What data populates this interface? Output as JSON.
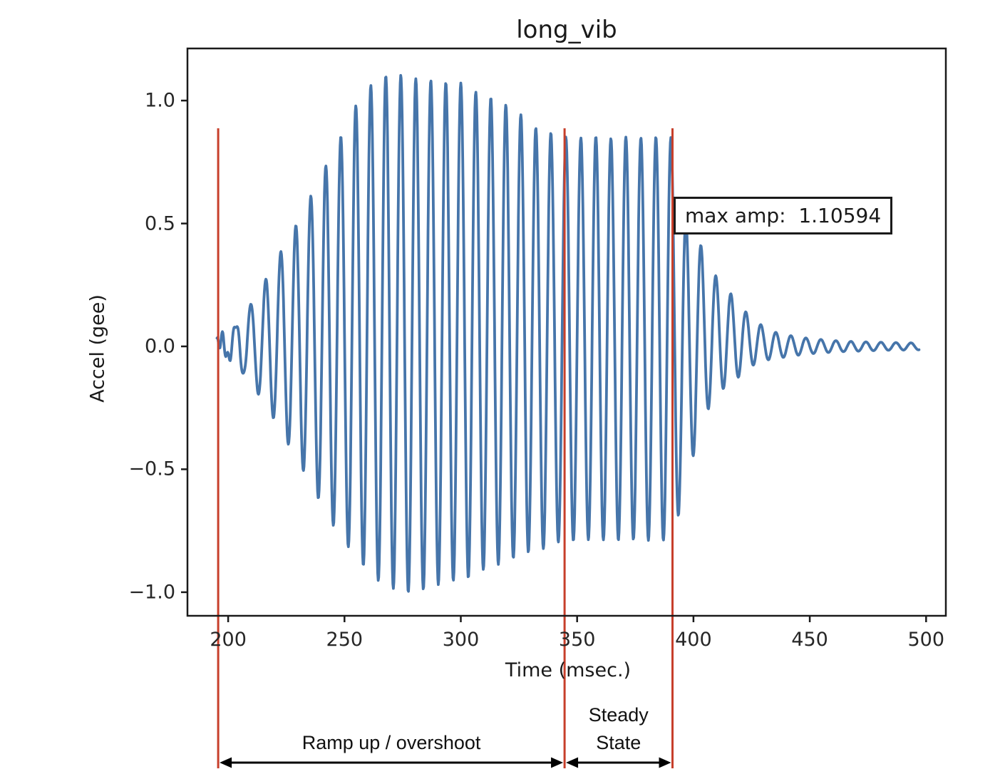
{
  "page": {
    "background": "#ffffff"
  },
  "chart_data": {
    "type": "line",
    "title": "long_vib",
    "xlabel": "Time (msec.)",
    "ylabel": "Accel (gee)",
    "grid": false,
    "legend": "none",
    "xlim": [
      182.5,
      508.5
    ],
    "ylim": [
      -1.096,
      1.212
    ],
    "x_ticks": [
      200,
      250,
      300,
      350,
      400,
      450,
      500
    ],
    "y_ticks": [
      -1.0,
      -0.5,
      0.0,
      0.5,
      1.0
    ],
    "y_tick_labels": [
      "−1.0",
      "−0.5",
      "0.0",
      "0.5",
      "1.0"
    ],
    "line_color": "#3c6ea5",
    "line_width": 3.8,
    "frame_color": "#1a1a1a",
    "max_amp": 1.10594,
    "annotation": {
      "text": "max amp:  1.10594"
    },
    "event_lines": {
      "color": "#c73f2b",
      "width": 3,
      "t_values": [
        195.7,
        344.6,
        391.0
      ]
    },
    "regions": [
      {
        "label_lines": [
          "Ramp up / overshoot"
        ],
        "from_t": 195.7,
        "to_t": 344.6
      },
      {
        "label_lines": [
          "Steady",
          "State"
        ],
        "from_t": 344.6,
        "to_t": 391.0
      }
    ],
    "signal": {
      "description": "damped-driven vibration acceleration trace; envelopes are [time_ms, amplitude_gee] keypoints, waveform = sine of given period bounded by +pos/-neg envelopes",
      "t_start": 195.2,
      "t_end": 497.0,
      "period_ms": 6.45,
      "sample_step_ms": 0.21,
      "early_ripple": {
        "amp": 0.035,
        "period_ms": 2.3,
        "fade_ms": 15
      },
      "envelope_pos": [
        [
          195.2,
          0.01
        ],
        [
          197,
          0.035
        ],
        [
          200,
          0.06
        ],
        [
          204,
          0.1
        ],
        [
          208,
          0.15
        ],
        [
          212,
          0.2
        ],
        [
          216,
          0.27
        ],
        [
          220,
          0.34
        ],
        [
          224,
          0.41
        ],
        [
          228,
          0.47
        ],
        [
          232,
          0.55
        ],
        [
          236,
          0.62
        ],
        [
          240,
          0.7
        ],
        [
          244,
          0.77
        ],
        [
          247,
          0.83
        ],
        [
          250,
          0.88
        ],
        [
          254,
          0.97
        ],
        [
          257,
          1.0
        ],
        [
          260,
          1.055
        ],
        [
          263,
          1.07
        ],
        [
          266,
          1.095
        ],
        [
          270,
          1.106
        ],
        [
          273,
          1.106
        ],
        [
          276,
          1.1
        ],
        [
          279,
          1.095
        ],
        [
          283,
          1.08
        ],
        [
          288,
          1.082
        ],
        [
          293,
          1.072
        ],
        [
          299,
          1.078
        ],
        [
          305,
          1.04
        ],
        [
          312,
          1.015
        ],
        [
          318,
          0.99
        ],
        [
          325,
          0.95
        ],
        [
          331,
          0.892
        ],
        [
          338,
          0.87
        ],
        [
          345,
          0.852
        ],
        [
          352,
          0.848
        ],
        [
          358,
          0.853
        ],
        [
          364,
          0.845
        ],
        [
          370,
          0.852
        ],
        [
          376,
          0.847
        ],
        [
          382,
          0.853
        ],
        [
          387,
          0.848
        ],
        [
          391,
          0.85
        ],
        [
          393,
          0.72
        ],
        [
          395,
          0.55
        ],
        [
          398,
          0.49
        ],
        [
          401,
          0.44
        ],
        [
          404,
          0.4
        ],
        [
          407,
          0.34
        ],
        [
          410,
          0.28
        ],
        [
          413,
          0.245
        ],
        [
          416,
          0.215
        ],
        [
          419,
          0.18
        ],
        [
          422,
          0.145
        ],
        [
          425,
          0.12
        ],
        [
          428,
          0.095
        ],
        [
          431,
          0.075
        ],
        [
          434,
          0.062
        ],
        [
          437,
          0.052
        ],
        [
          441,
          0.045
        ],
        [
          445,
          0.039
        ],
        [
          450,
          0.032
        ],
        [
          456,
          0.027
        ],
        [
          463,
          0.022
        ],
        [
          471,
          0.019
        ],
        [
          480,
          0.017
        ],
        [
          489,
          0.015
        ],
        [
          497,
          0.014
        ]
      ],
      "envelope_neg": [
        [
          195.2,
          0.01
        ],
        [
          197,
          0.03
        ],
        [
          200,
          0.05
        ],
        [
          204,
          0.09
        ],
        [
          208,
          0.13
        ],
        [
          212,
          0.18
        ],
        [
          216,
          0.24
        ],
        [
          220,
          0.3
        ],
        [
          224,
          0.37
        ],
        [
          228,
          0.43
        ],
        [
          232,
          0.5
        ],
        [
          236,
          0.57
        ],
        [
          240,
          0.64
        ],
        [
          244,
          0.71
        ],
        [
          248,
          0.77
        ],
        [
          252,
          0.82
        ],
        [
          256,
          0.87
        ],
        [
          260,
          0.91
        ],
        [
          264,
          0.95
        ],
        [
          268,
          0.97
        ],
        [
          272,
          0.99
        ],
        [
          276,
          1.0
        ],
        [
          280,
          1.0
        ],
        [
          285,
          0.985
        ],
        [
          290,
          0.97
        ],
        [
          297,
          0.952
        ],
        [
          304,
          0.94
        ],
        [
          311,
          0.9
        ],
        [
          317,
          0.885
        ],
        [
          324,
          0.855
        ],
        [
          331,
          0.83
        ],
        [
          337,
          0.82
        ],
        [
          343,
          0.792
        ],
        [
          350,
          0.79
        ],
        [
          358,
          0.785
        ],
        [
          366,
          0.79
        ],
        [
          374,
          0.785
        ],
        [
          382,
          0.79
        ],
        [
          391,
          0.788
        ],
        [
          393,
          0.7
        ],
        [
          396,
          0.63
        ],
        [
          399,
          0.48
        ],
        [
          402,
          0.37
        ],
        [
          406,
          0.26
        ],
        [
          409,
          0.22
        ],
        [
          413,
          0.17
        ],
        [
          416,
          0.15
        ],
        [
          420,
          0.12
        ],
        [
          424,
          0.085
        ],
        [
          428,
          0.065
        ],
        [
          432,
          0.055
        ],
        [
          436,
          0.05
        ],
        [
          440,
          0.042
        ],
        [
          445,
          0.036
        ],
        [
          450,
          0.03
        ],
        [
          456,
          0.026
        ],
        [
          463,
          0.022
        ],
        [
          472,
          0.019
        ],
        [
          482,
          0.016
        ],
        [
          490,
          0.015
        ],
        [
          497,
          0.014
        ]
      ]
    }
  }
}
